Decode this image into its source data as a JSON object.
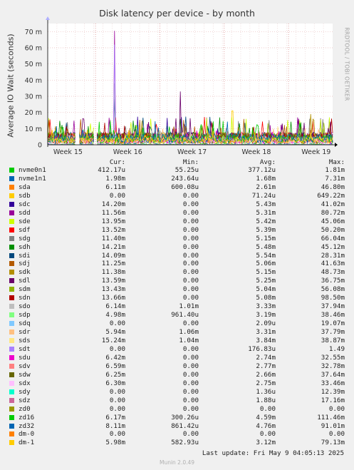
{
  "chart_data": {
    "type": "line",
    "title": "Disk latency per device - by month",
    "ylabel": "Average IO Wait (seconds)",
    "ylim": [
      0,
      75
    ],
    "yticks": [
      0,
      10,
      20,
      30,
      40,
      50,
      60,
      70
    ],
    "ytick_labels": [
      "0",
      "10 m",
      "20 m",
      "30 m",
      "40 m",
      "50 m",
      "60 m",
      "70 m"
    ],
    "xticks": [
      "Week 15",
      "Week 16",
      "Week 17",
      "Week 18",
      "Week 19"
    ],
    "xlim_days": [
      0,
      31
    ],
    "grid": true,
    "legend_headers": [
      "Cur:",
      "Min:",
      "Avg:",
      "Max:"
    ],
    "peaks": [
      {
        "series": "sdd",
        "x_day": 7.3,
        "y_ms": 70.5
      },
      {
        "series": "sdt",
        "x_day": 7.3,
        "y_ms": 62.0
      },
      {
        "series": "sdo",
        "x_day": 7.3,
        "y_ms": 38.0
      },
      {
        "series": "sdi",
        "x_day": 7.3,
        "y_ms": 28.3
      },
      {
        "series": "sdl",
        "x_day": 14.4,
        "y_ms": 33.0
      },
      {
        "series": "sdb",
        "x_day": 20.1,
        "y_ms": 21.0
      },
      {
        "series": "sdk",
        "x_day": 28.6,
        "y_ms": 19.0
      }
    ],
    "series": [
      {
        "name": "nvme0n1",
        "color": "#00cc00",
        "cur": "412.17u",
        "min": "55.25u",
        "avg": "377.12u",
        "max": "1.81m"
      },
      {
        "name": "nvme1n1",
        "color": "#0066b3",
        "cur": "1.98m",
        "min": "243.64u",
        "avg": "1.68m",
        "max": "7.31m"
      },
      {
        "name": "sda",
        "color": "#ff8000",
        "cur": "6.11m",
        "min": "600.08u",
        "avg": "2.61m",
        "max": "46.80m"
      },
      {
        "name": "sdb",
        "color": "#ffcc00",
        "cur": "0.00",
        "min": "0.00",
        "avg": "71.24u",
        "max": "649.22m"
      },
      {
        "name": "sdc",
        "color": "#330099",
        "cur": "14.20m",
        "min": "0.00",
        "avg": "5.43m",
        "max": "41.02m"
      },
      {
        "name": "sdd",
        "color": "#990099",
        "cur": "11.56m",
        "min": "0.00",
        "avg": "5.31m",
        "max": "80.72m"
      },
      {
        "name": "sde",
        "color": "#ccff00",
        "cur": "13.95m",
        "min": "0.00",
        "avg": "5.42m",
        "max": "45.06m"
      },
      {
        "name": "sdf",
        "color": "#ff0000",
        "cur": "13.52m",
        "min": "0.00",
        "avg": "5.39m",
        "max": "50.20m"
      },
      {
        "name": "sdg",
        "color": "#808080",
        "cur": "11.40m",
        "min": "0.00",
        "avg": "5.15m",
        "max": "66.04m"
      },
      {
        "name": "sdh",
        "color": "#008f00",
        "cur": "14.21m",
        "min": "0.00",
        "avg": "5.48m",
        "max": "45.12m"
      },
      {
        "name": "sdi",
        "color": "#00487d",
        "cur": "14.09m",
        "min": "0.00",
        "avg": "5.54m",
        "max": "28.31m"
      },
      {
        "name": "sdj",
        "color": "#b35a00",
        "cur": "11.25m",
        "min": "0.00",
        "avg": "5.06m",
        "max": "41.63m"
      },
      {
        "name": "sdk",
        "color": "#b38f00",
        "cur": "11.38m",
        "min": "0.00",
        "avg": "5.15m",
        "max": "48.73m"
      },
      {
        "name": "sdl",
        "color": "#6b006b",
        "cur": "13.59m",
        "min": "0.00",
        "avg": "5.25m",
        "max": "36.75m"
      },
      {
        "name": "sdm",
        "color": "#8fb300",
        "cur": "13.43m",
        "min": "0.00",
        "avg": "5.04m",
        "max": "56.08m"
      },
      {
        "name": "sdn",
        "color": "#b30000",
        "cur": "13.66m",
        "min": "0.00",
        "avg": "5.08m",
        "max": "98.50m"
      },
      {
        "name": "sdo",
        "color": "#bebebe",
        "cur": "6.14m",
        "min": "1.01m",
        "avg": "3.33m",
        "max": "37.94m"
      },
      {
        "name": "sdp",
        "color": "#80ff80",
        "cur": "4.98m",
        "min": "961.40u",
        "avg": "3.19m",
        "max": "38.46m"
      },
      {
        "name": "sdq",
        "color": "#80c9ff",
        "cur": "0.00",
        "min": "0.00",
        "avg": "2.09u",
        "max": "19.07m"
      },
      {
        "name": "sdr",
        "color": "#ffc080",
        "cur": "5.94m",
        "min": "1.06m",
        "avg": "3.31m",
        "max": "37.79m"
      },
      {
        "name": "sds",
        "color": "#ffe680",
        "cur": "15.24m",
        "min": "1.04m",
        "avg": "3.84m",
        "max": "38.87m"
      },
      {
        "name": "sdt",
        "color": "#aa80ff",
        "cur": "0.00",
        "min": "0.00",
        "avg": "176.83u",
        "max": "1.49"
      },
      {
        "name": "sdu",
        "color": "#ee00cc",
        "cur": "6.42m",
        "min": "0.00",
        "avg": "2.74m",
        "max": "32.55m"
      },
      {
        "name": "sdv",
        "color": "#ff8080",
        "cur": "6.59m",
        "min": "0.00",
        "avg": "2.77m",
        "max": "32.78m"
      },
      {
        "name": "sdw",
        "color": "#666600",
        "cur": "6.25m",
        "min": "0.00",
        "avg": "2.66m",
        "max": "37.64m"
      },
      {
        "name": "sdx",
        "color": "#ffbfff",
        "cur": "6.30m",
        "min": "0.00",
        "avg": "2.75m",
        "max": "33.46m"
      },
      {
        "name": "sdy",
        "color": "#00ffcc",
        "cur": "0.00",
        "min": "0.00",
        "avg": "1.36u",
        "max": "12.39m"
      },
      {
        "name": "sdz",
        "color": "#cc6699",
        "cur": "0.00",
        "min": "0.00",
        "avg": "1.88u",
        "max": "17.16m"
      },
      {
        "name": "zd0",
        "color": "#999900",
        "cur": "0.00",
        "min": "0.00",
        "avg": "0.00",
        "max": "0.00"
      },
      {
        "name": "zd16",
        "color": "#00cc00",
        "cur": "6.17m",
        "min": "300.26u",
        "avg": "4.59m",
        "max": "111.46m"
      },
      {
        "name": "zd32",
        "color": "#0066b3",
        "cur": "8.11m",
        "min": "861.42u",
        "avg": "4.76m",
        "max": "91.01m"
      },
      {
        "name": "dm-0",
        "color": "#ff8000",
        "cur": "0.00",
        "min": "0.00",
        "avg": "0.00",
        "max": "0.00"
      },
      {
        "name": "dm-1",
        "color": "#ffcc00",
        "cur": "5.98m",
        "min": "582.93u",
        "avg": "3.12m",
        "max": "79.13m"
      }
    ]
  },
  "footer": {
    "last_update": "Last update: Fri May  9 04:05:13 2025",
    "munin_version": "Munin 2.0.49",
    "credit": "RRDTOOL / TOBI OETIKER"
  }
}
